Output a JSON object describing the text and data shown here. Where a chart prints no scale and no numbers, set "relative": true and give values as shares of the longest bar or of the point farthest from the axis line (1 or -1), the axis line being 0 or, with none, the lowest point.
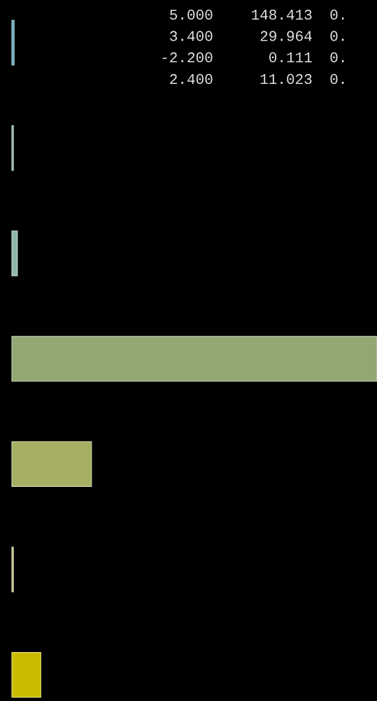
{
  "chart_data": {
    "type": "bar",
    "orientation": "horizontal",
    "relative": true,
    "categories": [
      null,
      null,
      null,
      null,
      null,
      null,
      null
    ],
    "values": [
      0.006,
      0.004,
      0.015,
      1,
      0.218,
      0.004,
      0.079
    ],
    "colors": [
      "#5fa8b8",
      "#7fa8a0",
      "#8fb8a8",
      "#92a873",
      "#a6ae62",
      "#b8b870",
      "#cbbb00"
    ],
    "annotations": [
      "5.000",
      "148.413",
      "0.",
      "3.400",
      "29.964",
      "0.",
      "-2.200",
      "0.111",
      "0.",
      "2.400",
      "11.023",
      "0."
    ]
  }
}
